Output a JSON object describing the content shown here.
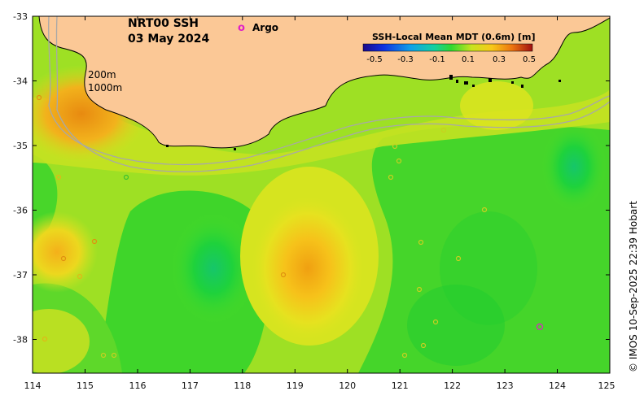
{
  "map": {
    "title_line1": "NRT00 SSH",
    "title_line2": "03 May 2024",
    "argo_symbol": "o",
    "argo_label": "Argo",
    "depth_label_200": "200m",
    "depth_label_1000": "1000m",
    "credit": "© IMOS 10-Sep-2025 22:39 Hobart",
    "land_color": "#fbc896",
    "argo_color": "#e020c8"
  },
  "legend": {
    "title": "SSH-Local Mean MDT (0.6m) [m]",
    "ticks": [
      "-0.5",
      "-0.3",
      "-0.1",
      "0.1",
      "0.3",
      "0.5"
    ]
  },
  "axes": {
    "lon_ticks": [
      "114",
      "115",
      "116",
      "117",
      "118",
      "119",
      "120",
      "121",
      "122",
      "123",
      "124",
      "125"
    ],
    "lat_ticks": [
      "-33",
      "-34",
      "-35",
      "-36",
      "-37",
      "-38"
    ]
  }
}
